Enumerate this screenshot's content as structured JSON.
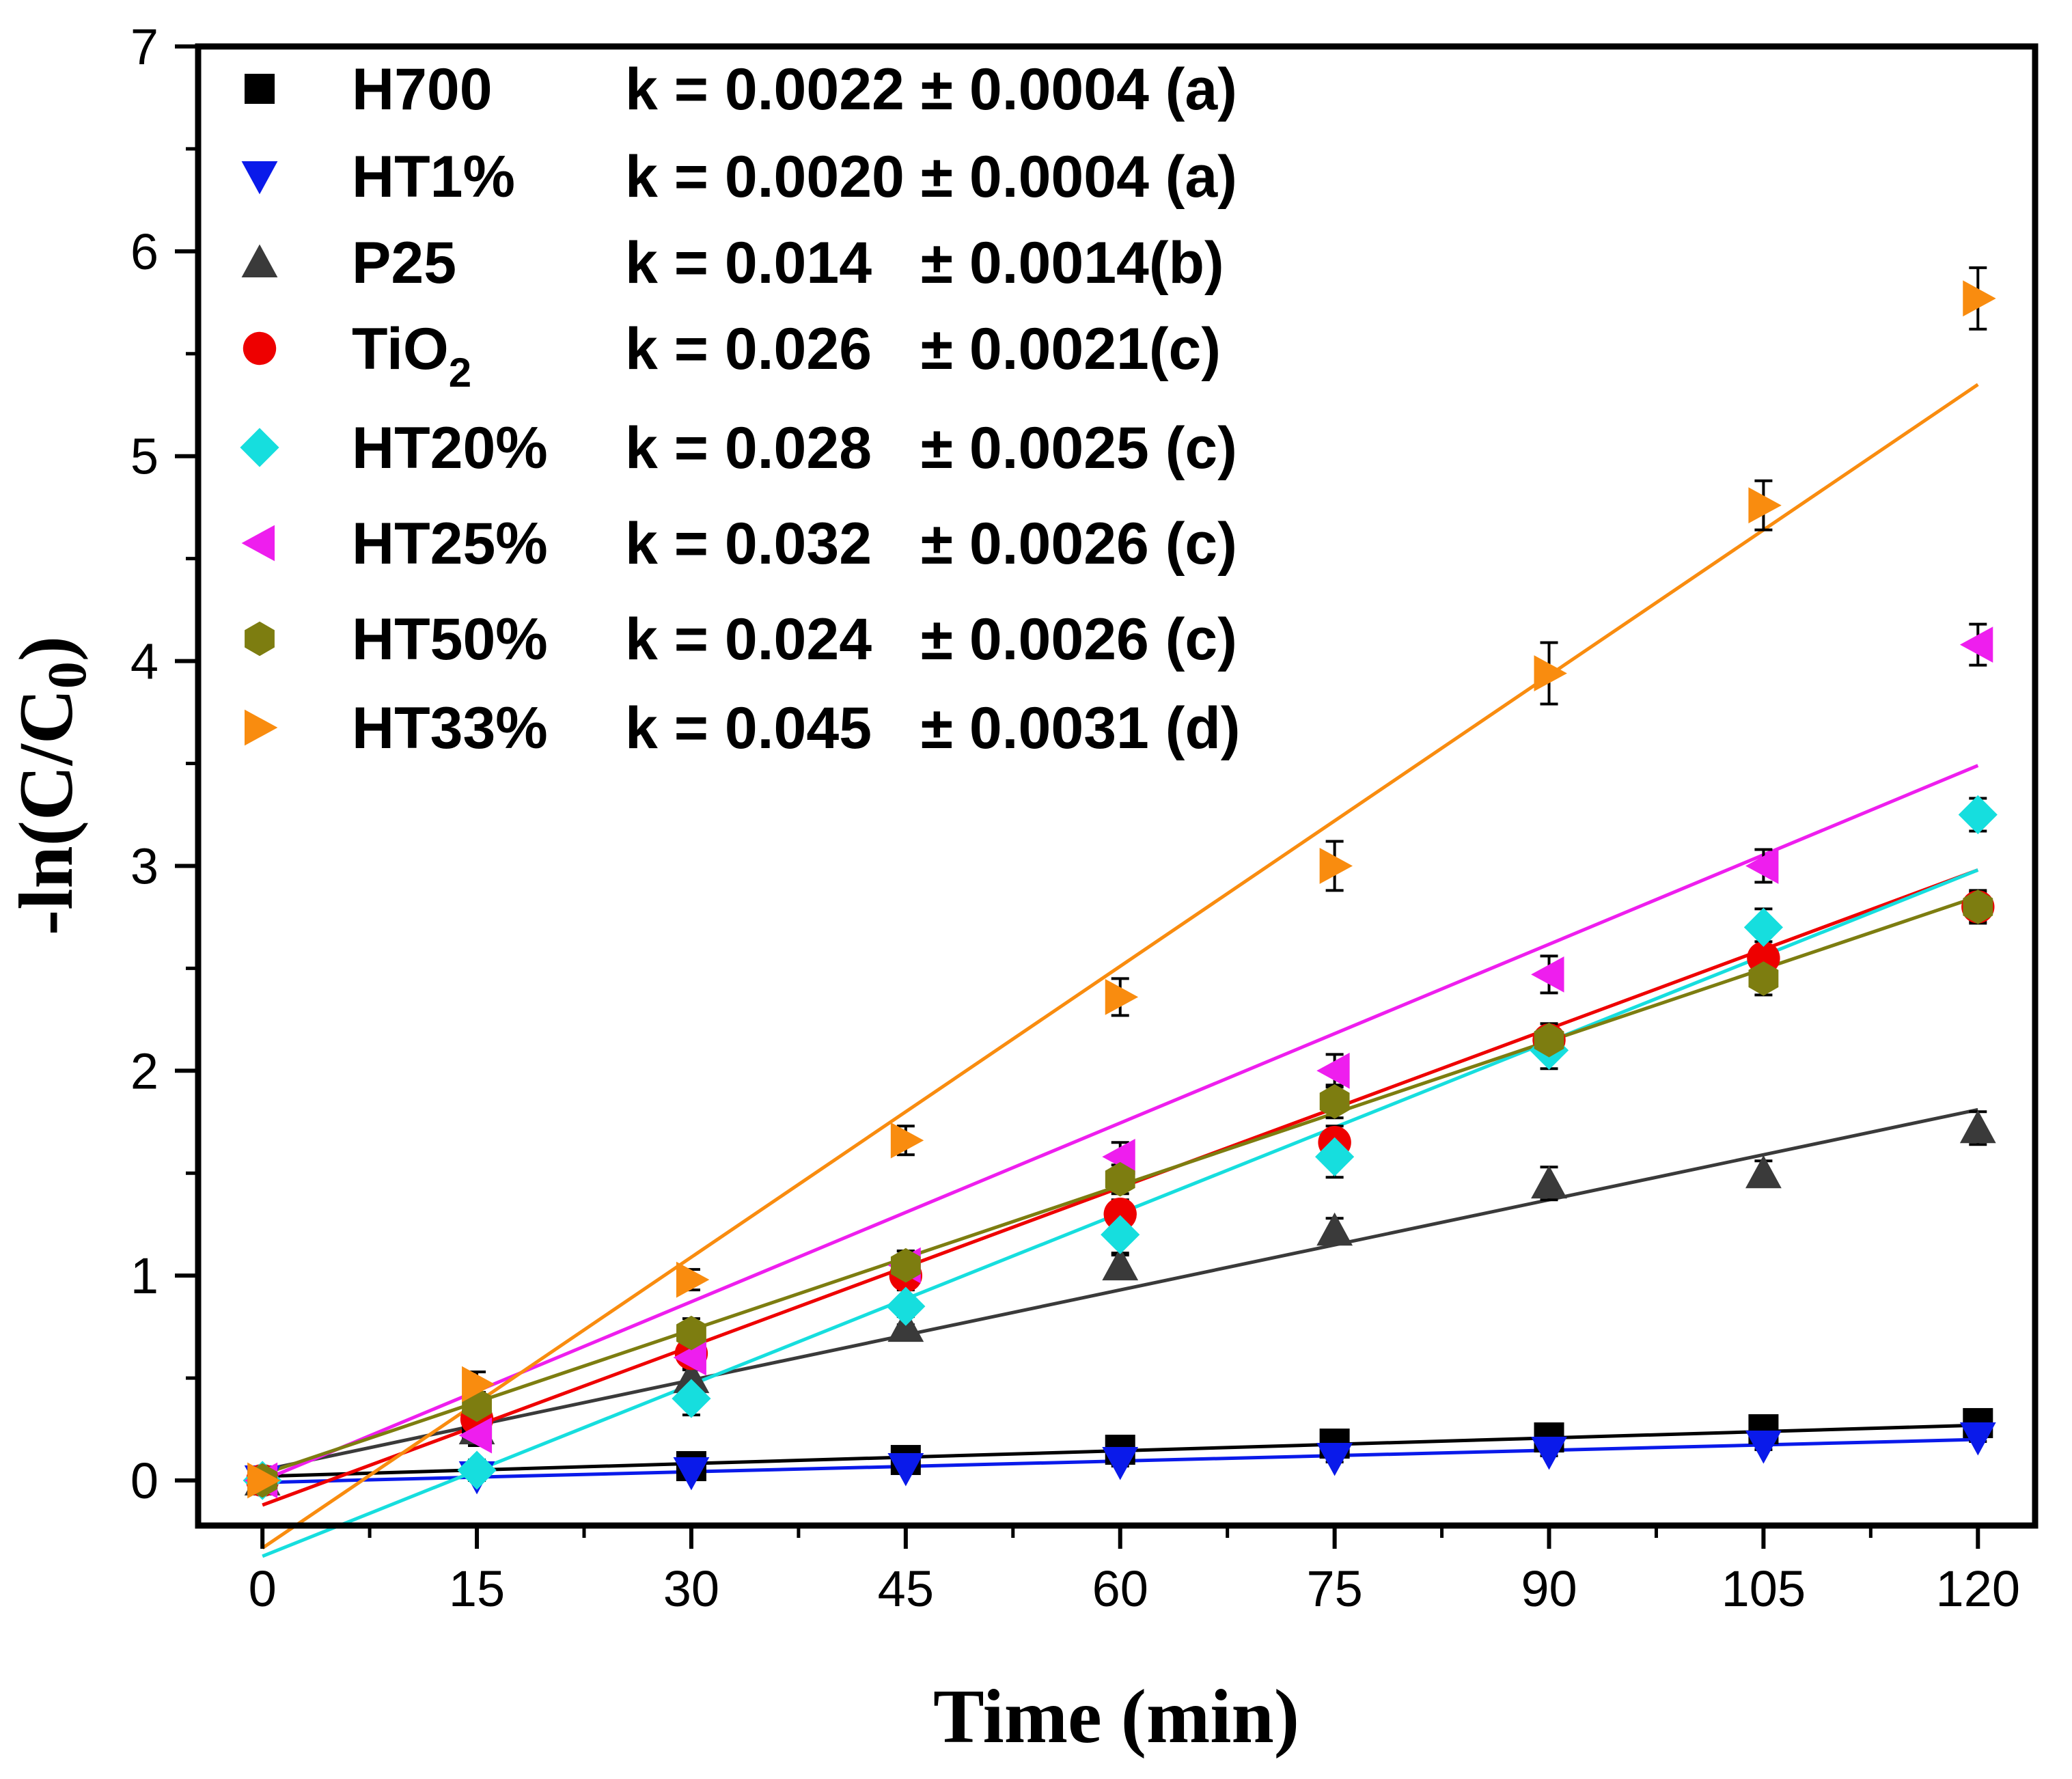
{
  "chart_data": {
    "type": "scatter",
    "title": "",
    "xlabel": "Time (min)",
    "ylabel": "-ln(C/C0)",
    "ylabel_parts": {
      "prefix": "-ln(C/C",
      "sub": "0",
      "suffix": ")"
    },
    "xlim": [
      -4.5,
      124
    ],
    "ylim": [
      -0.22,
      7
    ],
    "xticks": [
      0,
      15,
      30,
      45,
      60,
      75,
      90,
      105,
      120
    ],
    "yticks": [
      0,
      1,
      2,
      3,
      4,
      5,
      6,
      7
    ],
    "grid": false,
    "legend_position": "top-left",
    "x": [
      0,
      15,
      30,
      45,
      60,
      75,
      90,
      105,
      120
    ],
    "series": [
      {
        "name": "H700",
        "label_main": "H700",
        "label_sub": "",
        "k_text": "k = 0.0022 ± 0.0004 (a)",
        "color": "#000000",
        "marker": "square",
        "values": [
          0.0,
          0.27,
          0.07,
          0.1,
          0.15,
          0.18,
          0.21,
          0.25,
          0.28
        ],
        "errors": [
          0.02,
          0.03,
          0.02,
          0.02,
          0.02,
          0.02,
          0.02,
          0.03,
          0.03
        ],
        "fit": {
          "x": [
            0,
            120
          ],
          "y": [
            0.02,
            0.27
          ]
        }
      },
      {
        "name": "HT1%",
        "label_main": "HT1%",
        "label_sub": "",
        "k_text": "k = 0.0020 ± 0.0004 (a)",
        "color": "#0a1aea",
        "marker": "triangle-down",
        "values": [
          0.0,
          0.02,
          0.04,
          0.06,
          0.09,
          0.11,
          0.14,
          0.17,
          0.21
        ],
        "errors": [
          0.02,
          0.02,
          0.02,
          0.02,
          0.02,
          0.02,
          0.02,
          0.02,
          0.02
        ],
        "fit": {
          "x": [
            0,
            120
          ],
          "y": [
            -0.01,
            0.2
          ]
        }
      },
      {
        "name": "P25",
        "label_main": "P25",
        "label_sub": "",
        "k_text": "k = 0.014   ± 0.0014(b)",
        "color": "#3a3a3a",
        "marker": "triangle-up",
        "values": [
          0.0,
          0.25,
          0.5,
          0.75,
          1.05,
          1.22,
          1.45,
          1.5,
          1.72
        ],
        "errors": [
          0.03,
          0.05,
          0.05,
          0.05,
          0.06,
          0.06,
          0.08,
          0.06,
          0.08
        ],
        "fit": {
          "x": [
            0,
            120
          ],
          "y": [
            0.05,
            1.81
          ]
        }
      },
      {
        "name": "TiO2",
        "label_main": "TiO",
        "label_sub": "2",
        "k_text": "k = 0.026   ± 0.0021(c)",
        "color": "#ee0000",
        "marker": "circle",
        "values": [
          0.0,
          0.3,
          0.62,
          1.0,
          1.3,
          1.65,
          2.15,
          2.55,
          2.8
        ],
        "errors": [
          0.03,
          0.05,
          0.06,
          0.07,
          0.07,
          0.08,
          0.08,
          0.08,
          0.08
        ],
        "fit": {
          "x": [
            0,
            120
          ],
          "y": [
            -0.12,
            2.98
          ]
        }
      },
      {
        "name": "HT20%",
        "label_main": "HT20%",
        "label_sub": "",
        "k_text": "k = 0.028   ± 0.0025 (c)",
        "color": "#16dede",
        "marker": "diamond",
        "values": [
          0.0,
          0.05,
          0.4,
          0.85,
          1.2,
          1.58,
          2.1,
          2.7,
          3.25
        ],
        "errors": [
          0.03,
          0.05,
          0.08,
          0.09,
          0.1,
          0.1,
          0.09,
          0.09,
          0.08
        ],
        "fit": {
          "x": [
            0,
            120
          ],
          "y": [
            -0.37,
            2.98
          ]
        }
      },
      {
        "name": "HT25%",
        "label_main": "HT25%",
        "label_sub": "",
        "k_text": "k = 0.032   ± 0.0026 (c)",
        "color": "#ee1eee",
        "marker": "triangle-left",
        "values": [
          0.0,
          0.22,
          0.6,
          1.05,
          1.58,
          2.0,
          2.47,
          3.0,
          4.08
        ],
        "errors": [
          0.03,
          0.05,
          0.06,
          0.07,
          0.07,
          0.08,
          0.09,
          0.08,
          0.1
        ],
        "fit": {
          "x": [
            0,
            120
          ],
          "y": [
            0.0,
            3.49
          ]
        }
      },
      {
        "name": "HT50%",
        "label_main": "HT50%",
        "label_sub": "",
        "k_text": "k = 0.024   ± 0.0026 (c)",
        "color": "#7d7d10",
        "marker": "hexagon",
        "values": [
          0.0,
          0.37,
          0.72,
          1.05,
          1.47,
          1.85,
          2.15,
          2.45,
          2.8
        ],
        "errors": [
          0.03,
          0.06,
          0.07,
          0.07,
          0.07,
          0.08,
          0.08,
          0.08,
          0.07
        ],
        "fit": {
          "x": [
            0,
            120
          ],
          "y": [
            0.03,
            2.85
          ]
        }
      },
      {
        "name": "HT33%",
        "label_main": "HT33%",
        "label_sub": "",
        "k_text": "k = 0.045   ± 0.0031 (d)",
        "color": "#f98c0f",
        "marker": "triangle-right",
        "values": [
          0.0,
          0.47,
          0.98,
          1.66,
          2.36,
          3.0,
          3.94,
          4.76,
          5.77
        ],
        "errors": [
          0.03,
          0.06,
          0.05,
          0.07,
          0.09,
          0.12,
          0.15,
          0.12,
          0.15
        ],
        "fit": {
          "x": [
            0,
            120
          ],
          "y": [
            -0.33,
            5.35
          ]
        }
      }
    ]
  }
}
